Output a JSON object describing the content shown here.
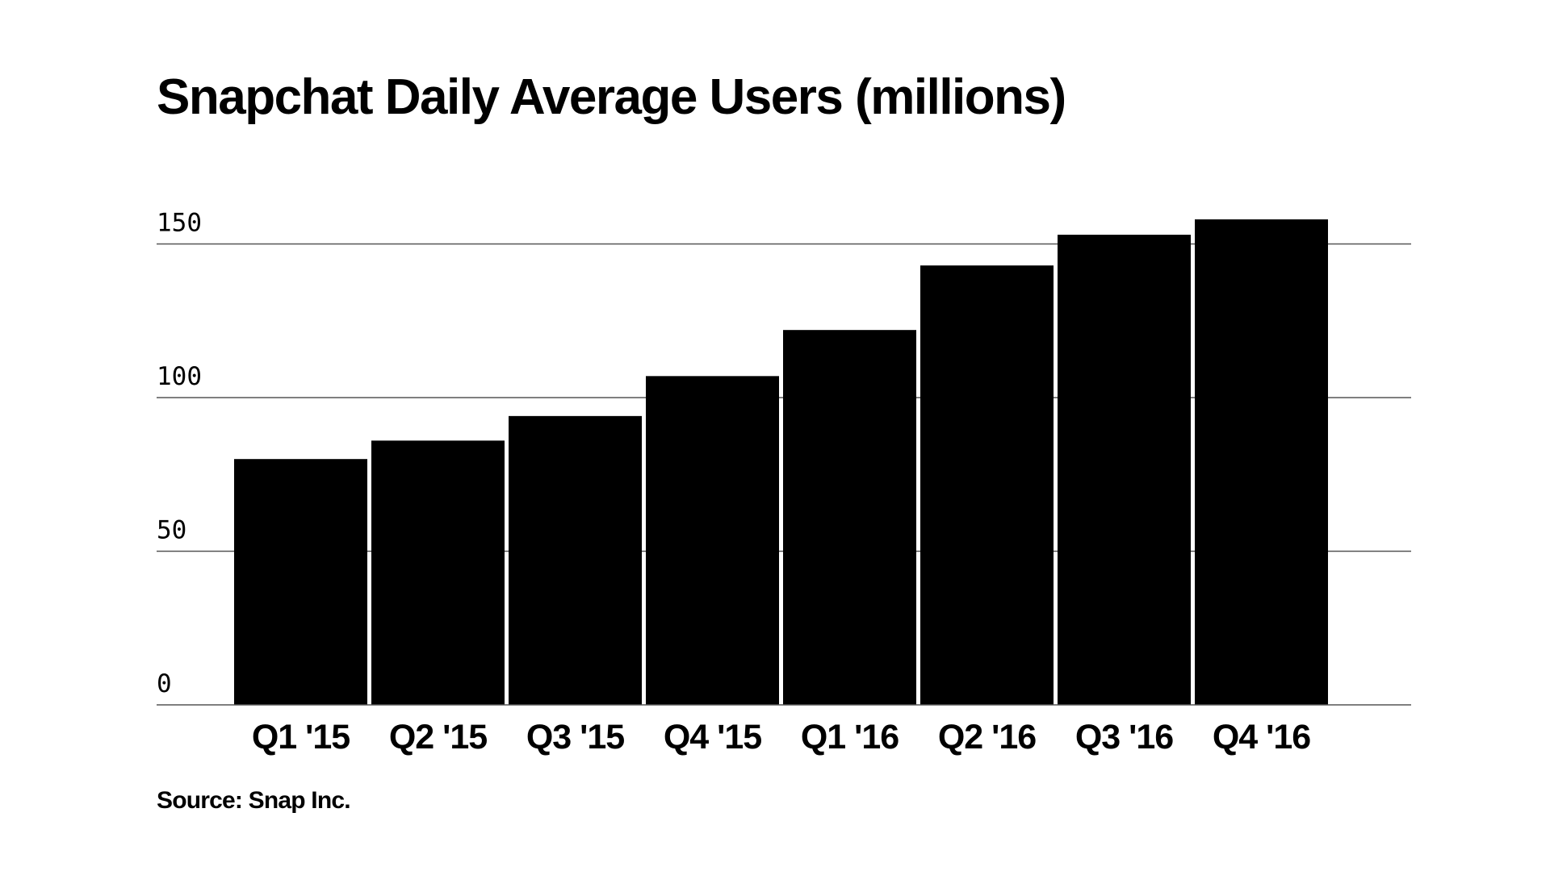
{
  "chart_data": {
    "type": "bar",
    "title": "Snapchat Daily Average Users (millions)",
    "source": "Source: Snap Inc.",
    "xlabel": "",
    "ylabel": "",
    "categories": [
      "Q1 '15",
      "Q2 '15",
      "Q3 '15",
      "Q4 '15",
      "Q1 '16",
      "Q2 '16",
      "Q3 '16",
      "Q4 '16"
    ],
    "values": [
      80,
      86,
      94,
      107,
      122,
      143,
      153,
      158
    ],
    "ylim": [
      0,
      150
    ],
    "yticks": [
      0,
      50,
      100,
      150
    ],
    "ytick_labels": [
      "0",
      "50",
      "100",
      "150"
    ],
    "grid": true,
    "legend": "none",
    "colors": {
      "bar": "#000000",
      "grid": "#555555",
      "background": "#ffffff"
    }
  }
}
